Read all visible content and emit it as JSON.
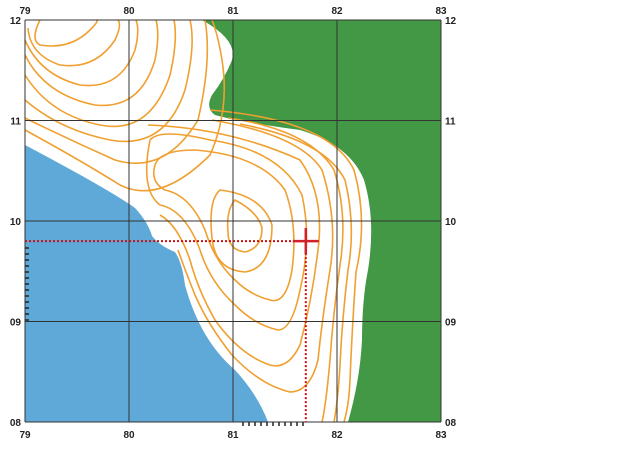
{
  "colors": {
    "water": "#5fa9d8",
    "vegetation": "#429844",
    "contour": "#f0a030",
    "grid": "#333333",
    "crosshair": "#d0202a",
    "guide": "#cc1010"
  },
  "grid": {
    "eastings": [
      "79",
      "80",
      "81",
      "82",
      "83"
    ],
    "northings": [
      "12",
      "11",
      "10",
      "09",
      "08"
    ]
  },
  "marker": {
    "icon": "crosshair-icon",
    "easting": 81.7,
    "northing": 9.8
  }
}
